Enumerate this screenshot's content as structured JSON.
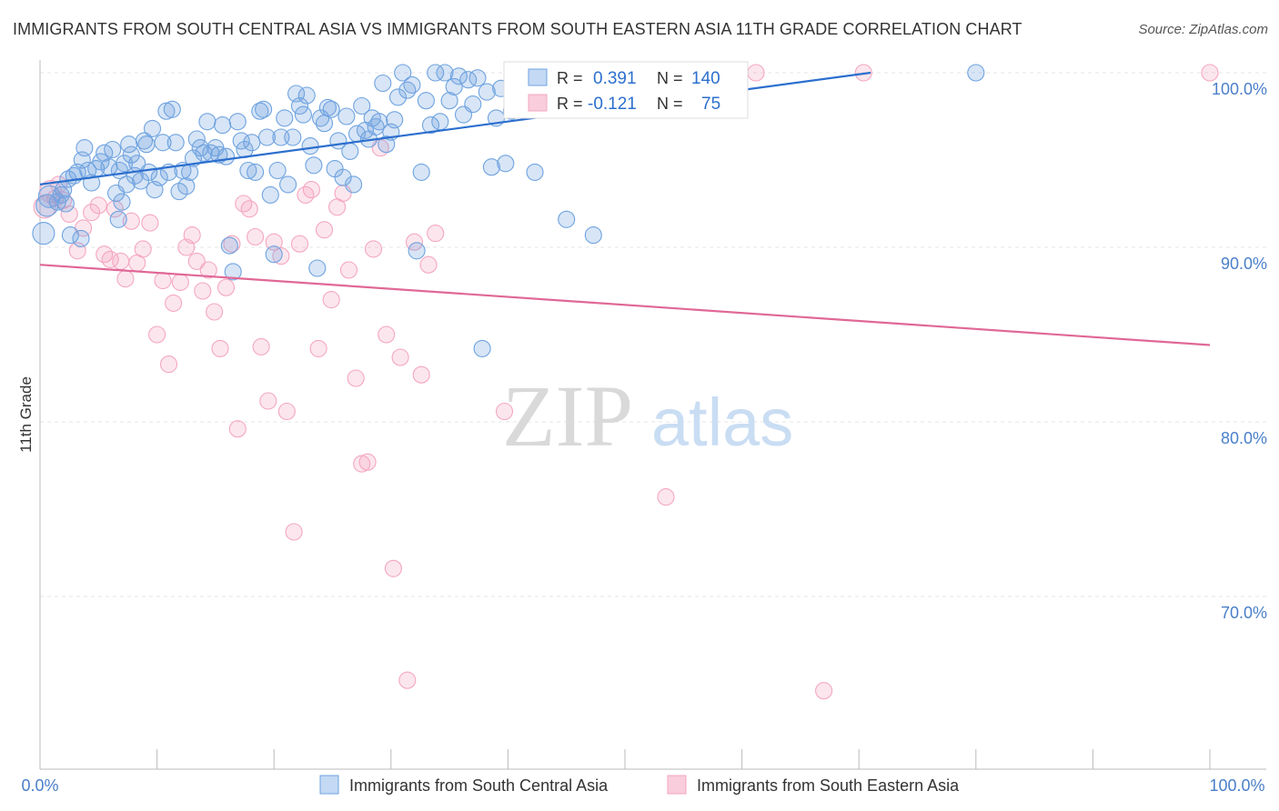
{
  "title": "IMMIGRANTS FROM SOUTH CENTRAL ASIA VS IMMIGRANTS FROM SOUTH EASTERN ASIA 11TH GRADE CORRELATION CHART",
  "source": "Source: ZipAtlas.com",
  "colors": {
    "blue": "#6fa3e0",
    "blue_line": "#2c6fce",
    "pink": "#f4a7c0",
    "pink_line": "#e06896",
    "axis_text": "#4a7fc9"
  },
  "chart_data": {
    "type": "scatter",
    "ylabel": "11th Grade",
    "xlim": [
      0,
      100
    ],
    "ylim": [
      60.0,
      101.5
    ],
    "y_ticks": [
      {
        "value": 100,
        "label": "100.0%"
      },
      {
        "value": 90,
        "label": "90.0%"
      },
      {
        "value": 80,
        "label": "80.0%"
      },
      {
        "value": 70,
        "label": "70.0%"
      }
    ],
    "x_tick_labels": {
      "left": "0.0%",
      "right": "100.0%"
    },
    "watermark": {
      "zip": "ZIP",
      "atlas": "atlas"
    },
    "legend_box": [
      {
        "r_label": "R =",
        "r_value": "0.391",
        "n_label": "N =",
        "n_value": "140"
      },
      {
        "r_label": "R =",
        "r_value": "-0.121",
        "n_label": "N =",
        "n_value": "75"
      }
    ],
    "series": [
      {
        "name": "Immigrants from South Central Asia",
        "color": "#6fa3e0",
        "trend": {
          "x0": 0,
          "y0": 93.6,
          "x1": 71,
          "y1": 100
        },
        "points": [
          [
            0.3,
            90.8
          ],
          [
            0.6,
            92.4
          ],
          [
            0.8,
            92.9
          ],
          [
            1.5,
            92.6
          ],
          [
            1.8,
            93.0
          ],
          [
            2.0,
            93.3
          ],
          [
            2.2,
            92.5
          ],
          [
            2.4,
            93.9
          ],
          [
            2.6,
            90.7
          ],
          [
            2.9,
            94.1
          ],
          [
            3.2,
            94.3
          ],
          [
            3.5,
            90.5
          ],
          [
            3.6,
            95.0
          ],
          [
            3.8,
            95.7
          ],
          [
            4.1,
            94.4
          ],
          [
            4.4,
            93.7
          ],
          [
            4.8,
            94.5
          ],
          [
            5.2,
            94.9
          ],
          [
            5.5,
            95.4
          ],
          [
            5.9,
            94.6
          ],
          [
            6.2,
            95.6
          ],
          [
            6.5,
            93.1
          ],
          [
            6.8,
            94.4
          ],
          [
            6.7,
            91.6
          ],
          [
            7.0,
            92.6
          ],
          [
            7.2,
            94.8
          ],
          [
            7.4,
            93.6
          ],
          [
            7.6,
            95.9
          ],
          [
            7.8,
            95.3
          ],
          [
            8.1,
            94.1
          ],
          [
            8.3,
            94.8
          ],
          [
            8.6,
            93.8
          ],
          [
            8.9,
            96.1
          ],
          [
            9.1,
            95.9
          ],
          [
            9.3,
            94.3
          ],
          [
            9.6,
            96.8
          ],
          [
            9.8,
            93.3
          ],
          [
            10.2,
            94.0
          ],
          [
            10.5,
            96.0
          ],
          [
            10.8,
            97.8
          ],
          [
            11.0,
            94.3
          ],
          [
            11.3,
            97.9
          ],
          [
            11.6,
            96.0
          ],
          [
            11.9,
            93.2
          ],
          [
            12.2,
            94.4
          ],
          [
            12.5,
            93.5
          ],
          [
            12.8,
            94.3
          ],
          [
            13.1,
            95.1
          ],
          [
            13.4,
            96.2
          ],
          [
            13.7,
            95.7
          ],
          [
            14.0,
            95.4
          ],
          [
            14.3,
            97.2
          ],
          [
            14.6,
            95.4
          ],
          [
            15.0,
            95.7
          ],
          [
            15.3,
            95.3
          ],
          [
            15.6,
            97.0
          ],
          [
            15.9,
            95.2
          ],
          [
            16.2,
            90.1
          ],
          [
            16.5,
            88.6
          ],
          [
            16.9,
            97.2
          ],
          [
            17.2,
            96.1
          ],
          [
            17.5,
            95.6
          ],
          [
            17.8,
            94.4
          ],
          [
            18.1,
            96.0
          ],
          [
            18.4,
            94.3
          ],
          [
            18.8,
            97.8
          ],
          [
            19.1,
            97.9
          ],
          [
            19.4,
            96.3
          ],
          [
            19.7,
            93.0
          ],
          [
            20.0,
            89.6
          ],
          [
            20.3,
            94.4
          ],
          [
            20.6,
            96.3
          ],
          [
            20.9,
            97.4
          ],
          [
            21.2,
            93.6
          ],
          [
            21.6,
            96.3
          ],
          [
            21.9,
            98.8
          ],
          [
            22.2,
            98.1
          ],
          [
            22.5,
            97.6
          ],
          [
            22.8,
            98.7
          ],
          [
            23.1,
            95.8
          ],
          [
            23.4,
            94.7
          ],
          [
            23.7,
            88.8
          ],
          [
            24.0,
            97.4
          ],
          [
            24.3,
            97.1
          ],
          [
            24.6,
            98.0
          ],
          [
            24.9,
            97.9
          ],
          [
            25.2,
            94.5
          ],
          [
            25.5,
            96.1
          ],
          [
            25.9,
            94.0
          ],
          [
            26.2,
            97.5
          ],
          [
            26.5,
            95.5
          ],
          [
            26.8,
            93.6
          ],
          [
            27.1,
            96.5
          ],
          [
            27.5,
            98.1
          ],
          [
            27.8,
            96.7
          ],
          [
            28.1,
            96.2
          ],
          [
            28.4,
            97.4
          ],
          [
            28.7,
            96.9
          ],
          [
            29.0,
            97.2
          ],
          [
            29.3,
            99.4
          ],
          [
            29.6,
            95.9
          ],
          [
            30.0,
            96.6
          ],
          [
            30.3,
            97.3
          ],
          [
            30.6,
            98.6
          ],
          [
            31.0,
            100.0
          ],
          [
            31.4,
            99.0
          ],
          [
            31.8,
            99.3
          ],
          [
            32.2,
            89.8
          ],
          [
            32.6,
            94.3
          ],
          [
            33.0,
            98.4
          ],
          [
            33.4,
            97.0
          ],
          [
            33.8,
            100.0
          ],
          [
            34.2,
            97.2
          ],
          [
            34.6,
            100.0
          ],
          [
            35.0,
            98.4
          ],
          [
            35.4,
            99.2
          ],
          [
            35.8,
            99.8
          ],
          [
            36.2,
            97.6
          ],
          [
            36.6,
            99.6
          ],
          [
            37.0,
            98.2
          ],
          [
            37.4,
            99.7
          ],
          [
            37.8,
            84.2
          ],
          [
            38.2,
            98.9
          ],
          [
            38.6,
            94.6
          ],
          [
            39.0,
            97.4
          ],
          [
            39.4,
            99.1
          ],
          [
            39.8,
            94.8
          ],
          [
            40.3,
            97.8
          ],
          [
            40.8,
            98.5
          ],
          [
            42.3,
            94.3
          ],
          [
            45.0,
            91.6
          ],
          [
            47.3,
            90.7
          ],
          [
            80.0,
            100.0
          ]
        ]
      },
      {
        "name": "Immigrants from South Eastern Asia",
        "color": "#f4a7c0",
        "trend": {
          "x0": 0,
          "y0": 89.0,
          "x1": 100,
          "y1": 84.4
        },
        "points": [
          [
            0.4,
            92.3
          ],
          [
            0.9,
            93.2
          ],
          [
            1.3,
            92.8
          ],
          [
            1.6,
            93.6
          ],
          [
            2.0,
            92.7
          ],
          [
            2.5,
            91.9
          ],
          [
            3.2,
            89.8
          ],
          [
            3.7,
            91.1
          ],
          [
            4.4,
            92.0
          ],
          [
            5.0,
            92.4
          ],
          [
            5.5,
            89.6
          ],
          [
            6.0,
            89.3
          ],
          [
            6.4,
            92.2
          ],
          [
            6.9,
            89.2
          ],
          [
            7.3,
            88.2
          ],
          [
            7.8,
            91.5
          ],
          [
            8.3,
            89.1
          ],
          [
            8.8,
            89.9
          ],
          [
            9.4,
            91.4
          ],
          [
            10.0,
            85.0
          ],
          [
            10.5,
            88.1
          ],
          [
            11.0,
            83.3
          ],
          [
            11.4,
            86.8
          ],
          [
            12.0,
            88.0
          ],
          [
            12.5,
            90.0
          ],
          [
            13.0,
            90.7
          ],
          [
            13.4,
            89.2
          ],
          [
            13.9,
            87.5
          ],
          [
            14.4,
            88.7
          ],
          [
            14.9,
            86.3
          ],
          [
            15.4,
            84.2
          ],
          [
            15.9,
            87.7
          ],
          [
            16.4,
            90.2
          ],
          [
            16.9,
            79.6
          ],
          [
            17.4,
            92.5
          ],
          [
            17.9,
            92.2
          ],
          [
            18.4,
            90.6
          ],
          [
            18.9,
            84.3
          ],
          [
            19.5,
            81.2
          ],
          [
            20.0,
            90.3
          ],
          [
            20.6,
            89.5
          ],
          [
            21.1,
            80.6
          ],
          [
            21.7,
            73.7
          ],
          [
            22.2,
            90.2
          ],
          [
            22.7,
            93.0
          ],
          [
            23.2,
            93.3
          ],
          [
            23.8,
            84.2
          ],
          [
            24.3,
            91.0
          ],
          [
            24.9,
            87.0
          ],
          [
            25.4,
            92.3
          ],
          [
            25.9,
            93.1
          ],
          [
            26.4,
            88.7
          ],
          [
            27.0,
            82.5
          ],
          [
            27.5,
            77.6
          ],
          [
            28.0,
            77.7
          ],
          [
            28.5,
            89.9
          ],
          [
            29.1,
            95.7
          ],
          [
            29.6,
            85.0
          ],
          [
            30.2,
            71.6
          ],
          [
            30.8,
            83.7
          ],
          [
            31.4,
            65.2
          ],
          [
            32.0,
            90.3
          ],
          [
            32.6,
            82.7
          ],
          [
            33.2,
            89.0
          ],
          [
            33.8,
            90.8
          ],
          [
            39.7,
            80.6
          ],
          [
            53.5,
            75.7
          ],
          [
            61.2,
            100.0
          ],
          [
            67.0,
            64.6
          ],
          [
            70.4,
            100.0
          ],
          [
            100.0,
            100.0
          ]
        ]
      }
    ]
  }
}
